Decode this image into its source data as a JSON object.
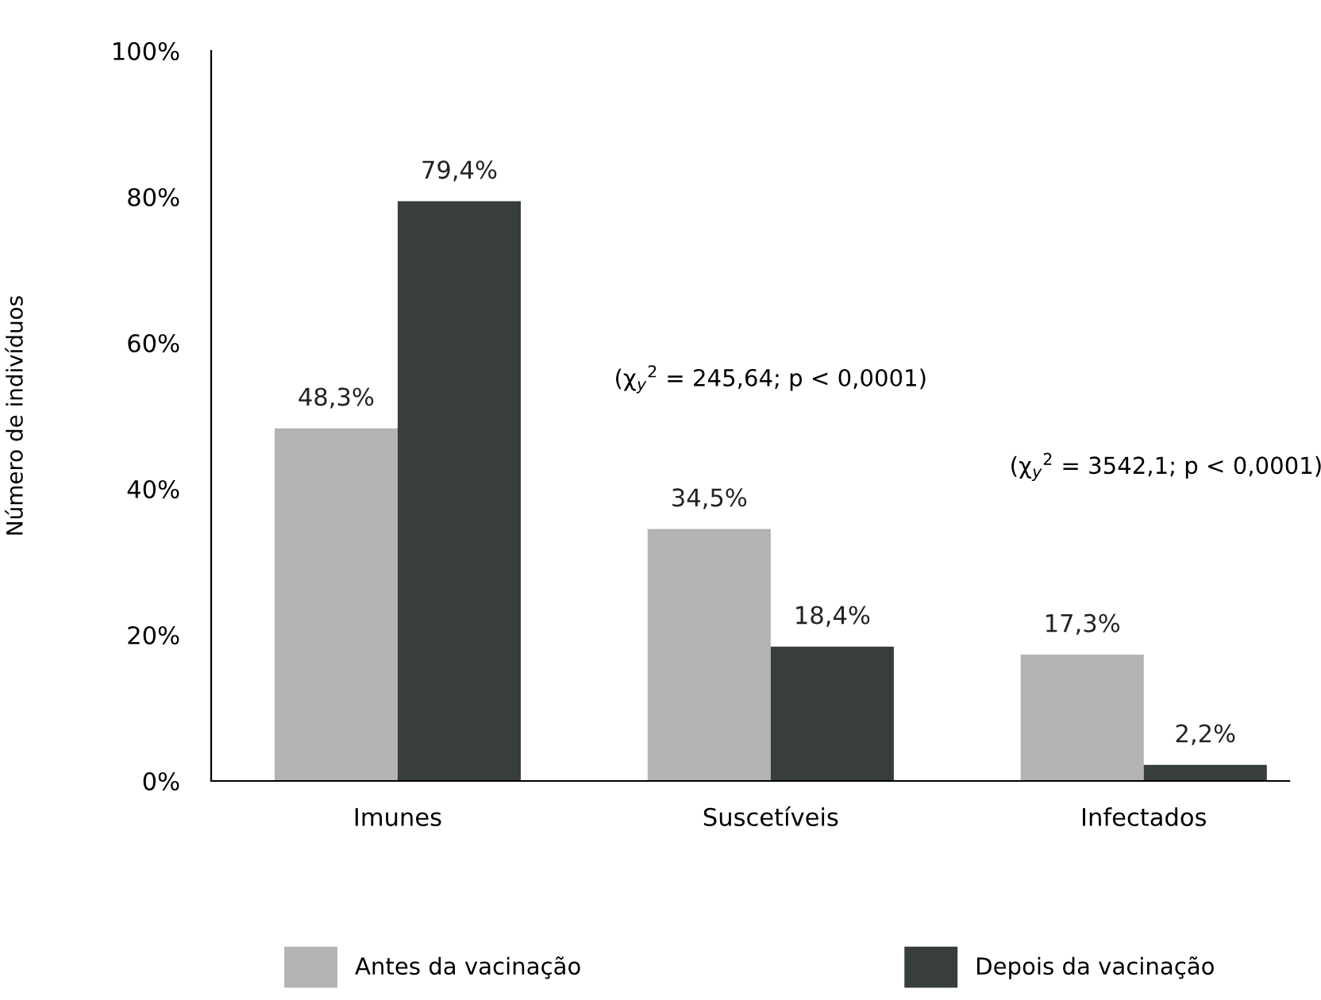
{
  "chart_data": {
    "type": "bar",
    "ylabel": "Número de indivíduos",
    "categories": [
      "Imunes",
      "Suscetíveis",
      "Infectados"
    ],
    "series": [
      {
        "name": "Antes da vacinação",
        "color": "#b3b3b3",
        "values": [
          48.3,
          34.5,
          17.3
        ],
        "value_labels": [
          "48,3%",
          "34,5%",
          "17,3%"
        ]
      },
      {
        "name": "Depois da vacinação",
        "color": "#383e3e",
        "values": [
          79.4,
          18.4,
          2.2
        ],
        "value_labels": [
          "79,4%",
          "18,4%",
          "2,2%"
        ]
      }
    ],
    "ylim": [
      0,
      100
    ],
    "yticks": [
      {
        "value": 0,
        "label": "0%"
      },
      {
        "value": 20,
        "label": "20%"
      },
      {
        "value": 40,
        "label": "40%"
      },
      {
        "value": 60,
        "label": "60%"
      },
      {
        "value": 80,
        "label": "80%"
      },
      {
        "value": 100,
        "label": "100%"
      }
    ],
    "annotations": [
      "(χ$_{y}$$^{2}$ = 245,64; p < 0,0001)",
      "(χ$_{y}$$^{2}$ = 3542,1; p < 0,0001)"
    ],
    "grid": false,
    "legend": "bottom"
  }
}
